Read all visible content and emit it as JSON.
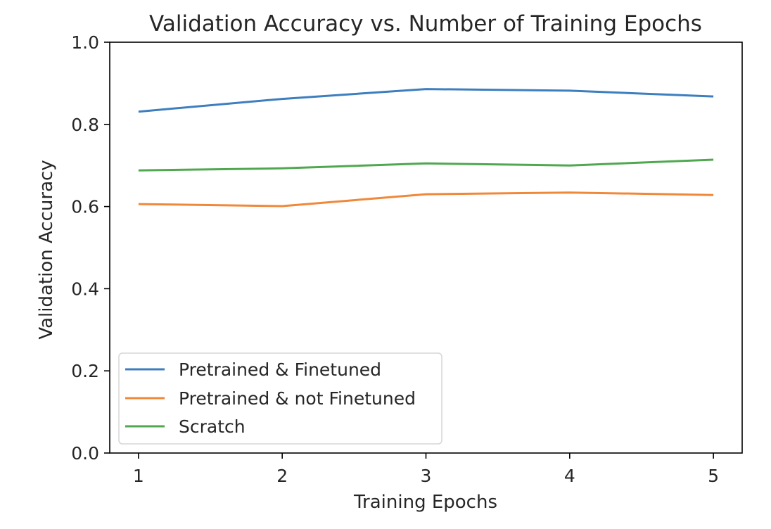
{
  "chart_data": {
    "type": "line",
    "title": "Validation Accuracy vs. Number of Training Epochs",
    "xlabel": "Training Epochs",
    "ylabel": "Validation Accuracy",
    "x": [
      1,
      2,
      3,
      4,
      5
    ],
    "xlim": [
      0.8,
      5.2
    ],
    "ylim": [
      0.0,
      1.0
    ],
    "x_ticks": [
      1,
      2,
      3,
      4,
      5
    ],
    "y_ticks": [
      "0.0",
      "0.2",
      "0.4",
      "0.6",
      "0.8",
      "1.0"
    ],
    "grid": false,
    "legend_position": "lower-left",
    "series": [
      {
        "name": "Pretrained & Finetuned",
        "color": "#3d7ebf",
        "values": [
          0.831,
          0.862,
          0.886,
          0.882,
          0.868
        ]
      },
      {
        "name": "Pretrained & not Finetuned",
        "color": "#f0883a",
        "values": [
          0.606,
          0.601,
          0.63,
          0.634,
          0.628
        ]
      },
      {
        "name": "Scratch",
        "color": "#4fa84f",
        "values": [
          0.688,
          0.693,
          0.705,
          0.7,
          0.714
        ]
      }
    ]
  }
}
